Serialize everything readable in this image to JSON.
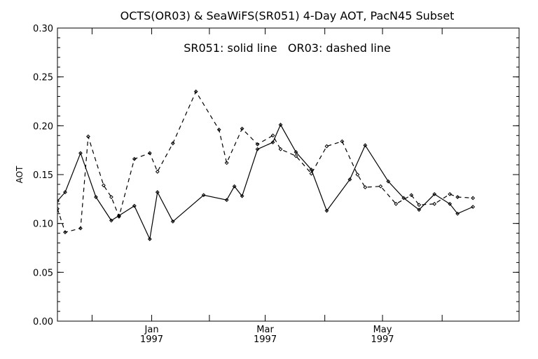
{
  "chart_data": {
    "type": "line",
    "title": "OCTS(OR03) & SeaWiFS(SR051) 4-Day AOT, PacN45 Subset",
    "annotation": "SR051: solid line   OR03: dashed line",
    "xlabel": "",
    "ylabel": "AOT",
    "ylim": [
      0.0,
      0.3
    ],
    "y_ticks": [
      "0.00",
      "0.05",
      "0.10",
      "0.15",
      "0.20",
      "0.25",
      "0.30"
    ],
    "x_major_ticks": [
      {
        "month": "Jan",
        "year": "1997",
        "day": 49
      },
      {
        "month": "Mar",
        "year": "1997",
        "day": 108
      },
      {
        "month": "May",
        "year": "1997",
        "day": 169
      }
    ],
    "x_minor_tick_days": [
      18,
      49,
      79,
      108,
      139,
      169,
      200
    ],
    "xlim_days": [
      0,
      240
    ],
    "grid": false,
    "legend": "none",
    "series": [
      {
        "name": "SR051",
        "style": "solid",
        "color": "#000000",
        "x_days": [
          0,
          4,
          12,
          20,
          28,
          32,
          40,
          48,
          52,
          60,
          76,
          88,
          92,
          96,
          104,
          112,
          116,
          124,
          132,
          140,
          152,
          160,
          172,
          180,
          188,
          196,
          204,
          208,
          216
        ],
        "values": [
          0.123,
          0.132,
          0.172,
          0.127,
          0.103,
          0.108,
          0.118,
          0.084,
          0.132,
          0.102,
          0.129,
          0.124,
          0.138,
          0.128,
          0.176,
          0.183,
          0.201,
          0.173,
          0.155,
          0.113,
          0.145,
          0.18,
          0.143,
          0.126,
          0.114,
          0.13,
          0.12,
          0.11,
          0.117
        ]
      },
      {
        "name": "OR03",
        "style": "dashed",
        "color": "#000000",
        "x_days": [
          0,
          4,
          12,
          16,
          24,
          28,
          32,
          40,
          48,
          52,
          60,
          72,
          84,
          88,
          96,
          104,
          112,
          116,
          124,
          132,
          140,
          148,
          156,
          160,
          168,
          176,
          184,
          188,
          196,
          204,
          208,
          216
        ],
        "values": [
          0.115,
          0.091,
          0.095,
          0.189,
          0.139,
          0.127,
          0.107,
          0.166,
          0.172,
          0.153,
          0.182,
          0.235,
          0.196,
          0.162,
          0.197,
          0.181,
          0.19,
          0.176,
          0.169,
          0.151,
          0.179,
          0.184,
          0.15,
          0.137,
          0.138,
          0.12,
          0.129,
          0.119,
          0.12,
          0.13,
          0.127,
          0.126
        ]
      }
    ]
  }
}
